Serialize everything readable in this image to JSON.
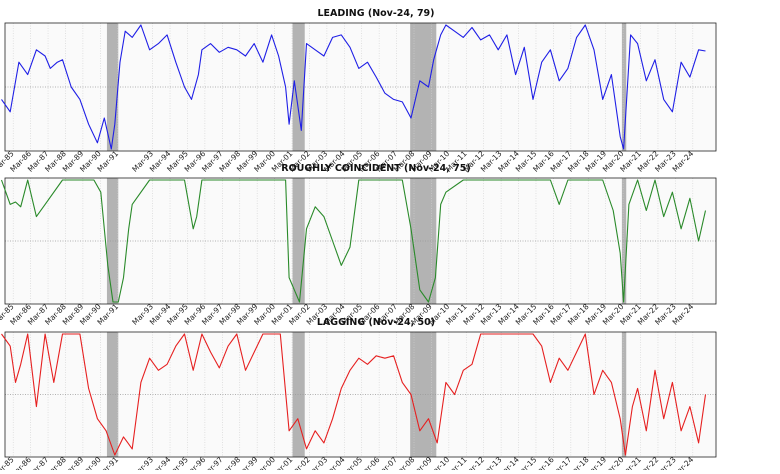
{
  "chart_data": [
    {
      "type": "line",
      "title": "LEADING (Nov-24, 79)",
      "color": "#1f1fe6",
      "ylim": [
        0,
        100
      ],
      "grid": true,
      "x_ticks": [
        "Mar-85",
        "Mar-86",
        "Mar-87",
        "Mar-88",
        "Mar-89",
        "Mar-90",
        "Mar-91",
        "Mar-93",
        "Mar-94",
        "Mar-95",
        "Mar-96",
        "Mar-97",
        "Mar-98",
        "Mar-99",
        "Mar-00",
        "Mar-01",
        "Mar-02",
        "Mar-03",
        "Mar-04",
        "Mar-05",
        "Mar-06",
        "Mar-07",
        "Mar-08",
        "Mar-09",
        "Mar-10",
        "Mar-11",
        "Mar-12",
        "Mar-13",
        "Mar-14",
        "Mar-15",
        "Mar-16",
        "Mar-17",
        "Mar-18",
        "Mar-19",
        "Mar-20",
        "Mar-21",
        "Mar-22",
        "Mar-23",
        "Mar-24"
      ],
      "recessions": [
        [
          1990.55,
          1991.2
        ],
        [
          2001.2,
          2001.9
        ],
        [
          2007.95,
          2009.45
        ],
        [
          2020.1,
          2020.35
        ]
      ],
      "series": [
        {
          "x": [
            1984.5,
            1985,
            1985.5,
            1986,
            1986.5,
            1987,
            1987.3,
            1987.7,
            1988,
            1988.5,
            1989,
            1989.5,
            1990,
            1990.4,
            1990.8,
            1991,
            1991.3,
            1991.6,
            1992,
            1992.5,
            1993,
            1993.5,
            1994,
            1994.5,
            1995,
            1995.4,
            1995.8,
            1996,
            1996.5,
            1997,
            1997.5,
            1998,
            1998.5,
            1999,
            1999.5,
            2000,
            2000.4,
            2000.8,
            2001,
            2001.3,
            2001.7,
            2002,
            2002.5,
            2003,
            2003.5,
            2004,
            2004.5,
            2005,
            2005.5,
            2006,
            2006.5,
            2007,
            2007.5,
            2008,
            2008.5,
            2009,
            2009.3,
            2009.7,
            2010,
            2010.5,
            2011,
            2011.5,
            2012,
            2012.5,
            2013,
            2013.5,
            2014,
            2014.5,
            2015,
            2015.5,
            2016,
            2016.5,
            2017,
            2017.5,
            2018,
            2018.5,
            2019,
            2019.5,
            2020,
            2020.2,
            2020.6,
            2021,
            2021.5,
            2022,
            2022.5,
            2023,
            2023.5,
            2024,
            2024.5,
            2024.9
          ],
          "y": [
            40,
            30,
            70,
            60,
            80,
            75,
            65,
            70,
            72,
            50,
            40,
            20,
            5,
            25,
            0,
            20,
            70,
            95,
            90,
            100,
            80,
            85,
            92,
            70,
            50,
            40,
            60,
            80,
            85,
            78,
            82,
            80,
            75,
            85,
            70,
            92,
            75,
            50,
            20,
            55,
            15,
            85,
            80,
            75,
            90,
            92,
            82,
            65,
            70,
            58,
            45,
            40,
            38,
            25,
            55,
            50,
            72,
            92,
            100,
            95,
            90,
            98,
            88,
            92,
            80,
            92,
            60,
            82,
            40,
            70,
            80,
            55,
            65,
            90,
            100,
            80,
            40,
            60,
            10,
            0,
            92,
            85,
            55,
            72,
            40,
            30,
            70,
            58,
            80,
            79
          ]
        }
      ]
    },
    {
      "type": "line",
      "title": "ROUGHLY COINCIDENT (Nov-24, 75)",
      "color": "#2a8a2a",
      "ylim": [
        0,
        100
      ],
      "grid": true,
      "x_ticks": [
        "Mar-85",
        "Mar-86",
        "Mar-87",
        "Mar-88",
        "Mar-89",
        "Mar-90",
        "Mar-91",
        "Mar-93",
        "Mar-94",
        "Mar-95",
        "Mar-96",
        "Mar-97",
        "Mar-98",
        "Mar-99",
        "Mar-00",
        "Mar-01",
        "Mar-02",
        "Mar-03",
        "Mar-04",
        "Mar-05",
        "Mar-06",
        "Mar-07",
        "Mar-08",
        "Mar-09",
        "Mar-10",
        "Mar-11",
        "Mar-12",
        "Mar-13",
        "Mar-14",
        "Mar-15",
        "Mar-16",
        "Mar-17",
        "Mar-18",
        "Mar-19",
        "Mar-20",
        "Mar-21",
        "Mar-22",
        "Mar-23",
        "Mar-24"
      ],
      "recessions": [
        [
          1990.55,
          1991.2
        ],
        [
          2001.2,
          2001.9
        ],
        [
          2007.95,
          2009.45
        ],
        [
          2020.1,
          2020.35
        ]
      ],
      "series": [
        {
          "x": [
            1984.5,
            1985,
            1985.3,
            1985.6,
            1986,
            1986.5,
            1987,
            1988,
            1989,
            1989.8,
            1990.2,
            1990.6,
            1990.9,
            1991.2,
            1991.5,
            1991.8,
            1992,
            1993,
            1994,
            1995,
            1995.5,
            1995.7,
            1996,
            1997,
            1998,
            1999,
            2000,
            2000.8,
            2001,
            2001.3,
            2001.6,
            2002,
            2002.5,
            2003,
            2003.5,
            2004,
            2004.5,
            2005,
            2006,
            2007,
            2007.5,
            2008,
            2008.5,
            2009,
            2009.4,
            2009.7,
            2010,
            2011,
            2012,
            2013,
            2014,
            2015,
            2016,
            2016.5,
            2017,
            2018,
            2019,
            2019.6,
            2020,
            2020.2,
            2020.5,
            2021,
            2021.5,
            2022,
            2022.5,
            2023,
            2023.5,
            2024,
            2024.5,
            2024.9
          ],
          "y": [
            100,
            80,
            82,
            78,
            100,
            70,
            80,
            100,
            100,
            100,
            90,
            30,
            0,
            0,
            20,
            60,
            80,
            100,
            100,
            100,
            60,
            70,
            100,
            100,
            100,
            100,
            100,
            100,
            20,
            10,
            0,
            60,
            78,
            70,
            50,
            30,
            45,
            100,
            100,
            100,
            100,
            60,
            10,
            0,
            20,
            80,
            90,
            100,
            100,
            100,
            100,
            100,
            100,
            80,
            100,
            100,
            100,
            75,
            40,
            0,
            80,
            100,
            75,
            100,
            70,
            90,
            60,
            85,
            50,
            75
          ]
        }
      ]
    },
    {
      "type": "line",
      "title": "LAGGING (Nov-24, 50)",
      "color": "#e62020",
      "ylim": [
        0,
        100
      ],
      "grid": true,
      "x_ticks": [
        "Mar-85",
        "Mar-86",
        "Mar-87",
        "Mar-88",
        "Mar-89",
        "Mar-90",
        "Mar-91",
        "Mar-93",
        "Mar-94",
        "Mar-95",
        "Mar-96",
        "Mar-97",
        "Mar-98",
        "Mar-99",
        "Mar-00",
        "Mar-01",
        "Mar-02",
        "Mar-03",
        "Mar-04",
        "Mar-05",
        "Mar-06",
        "Mar-07",
        "Mar-08",
        "Mar-09",
        "Mar-10",
        "Mar-11",
        "Mar-12",
        "Mar-13",
        "Mar-14",
        "Mar-15",
        "Mar-16",
        "Mar-17",
        "Mar-18",
        "Mar-19",
        "Mar-20",
        "Mar-21",
        "Mar-22",
        "Mar-23",
        "Mar-24"
      ],
      "recessions": [
        [
          1990.55,
          1991.2
        ],
        [
          2001.2,
          2001.9
        ],
        [
          2007.95,
          2009.45
        ],
        [
          2020.1,
          2020.35
        ]
      ],
      "series": [
        {
          "x": [
            1984.5,
            1985,
            1985.3,
            1985.6,
            1986,
            1986.5,
            1987,
            1987.5,
            1988,
            1988.5,
            1989,
            1989.5,
            1990,
            1990.5,
            1991,
            1991.5,
            1992,
            1992.5,
            1993,
            1993.5,
            1994,
            1994.5,
            1995,
            1995.5,
            1996,
            1996.5,
            1997,
            1997.5,
            1998,
            1998.5,
            1999,
            1999.5,
            2000,
            2000.5,
            2001,
            2001.5,
            2002,
            2002.5,
            2003,
            2003.5,
            2004,
            2004.5,
            2005,
            2005.5,
            2006,
            2006.5,
            2007,
            2007.5,
            2008,
            2008.5,
            2009,
            2009.5,
            2010,
            2010.5,
            2011,
            2011.5,
            2012,
            2012.5,
            2013,
            2014,
            2015,
            2015.5,
            2016,
            2016.5,
            2017,
            2017.5,
            2018,
            2018.5,
            2019,
            2019.5,
            2020,
            2020.3,
            2020.7,
            2021,
            2021.5,
            2022,
            2022.5,
            2023,
            2023.5,
            2024,
            2024.5,
            2024.9
          ],
          "y": [
            100,
            90,
            60,
            75,
            100,
            40,
            100,
            60,
            100,
            100,
            100,
            55,
            30,
            20,
            0,
            15,
            5,
            60,
            80,
            70,
            75,
            90,
            100,
            70,
            100,
            85,
            72,
            90,
            100,
            70,
            85,
            100,
            100,
            100,
            20,
            30,
            5,
            20,
            10,
            30,
            55,
            70,
            80,
            75,
            82,
            80,
            82,
            60,
            50,
            20,
            30,
            10,
            60,
            50,
            70,
            75,
            100,
            100,
            100,
            100,
            100,
            90,
            60,
            80,
            70,
            85,
            100,
            50,
            70,
            60,
            30,
            0,
            40,
            55,
            20,
            70,
            30,
            60,
            20,
            40,
            10,
            50
          ]
        }
      ]
    }
  ]
}
